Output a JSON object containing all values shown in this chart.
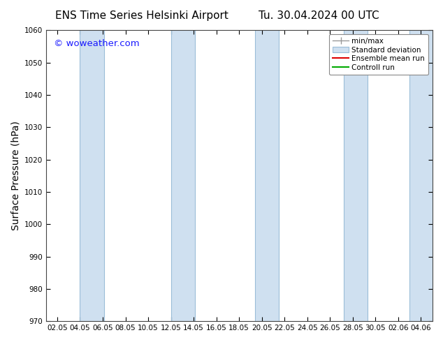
{
  "title_left": "ENS Time Series Helsinki Airport",
  "title_right": "Tu. 30.04.2024 00 UTC",
  "ylabel": "Surface Pressure (hPa)",
  "ylim": [
    970,
    1060
  ],
  "yticks": [
    970,
    980,
    990,
    1000,
    1010,
    1020,
    1030,
    1040,
    1050,
    1060
  ],
  "xtick_labels": [
    "02.05",
    "04.05",
    "06.05",
    "08.05",
    "10.05",
    "12.05",
    "14.05",
    "16.05",
    "18.05",
    "20.05",
    "22.05",
    "24.05",
    "26.05",
    "28.05",
    "30.05",
    "02.06",
    "04.06"
  ],
  "background_color": "#ffffff",
  "plot_bg_color": "#ffffff",
  "band_color": "#cfe0f0",
  "band_edge_color": "#9abdd8",
  "watermark": "© woweather.com",
  "watermark_color": "#1a1aff",
  "legend_entries": [
    "min/max",
    "Standard deviation",
    "Ensemble mean run",
    "Controll run"
  ],
  "font_size": 10,
  "title_font_size": 11,
  "band_pairs_data": [
    [
      1.0,
      2.05
    ],
    [
      5.0,
      6.05
    ],
    [
      8.7,
      9.75
    ],
    [
      12.6,
      13.65
    ],
    [
      15.5,
      16.7
    ]
  ]
}
